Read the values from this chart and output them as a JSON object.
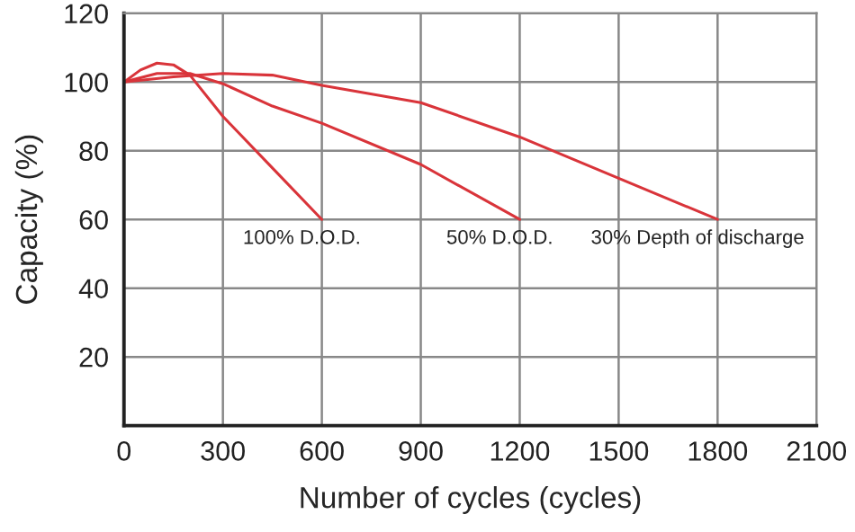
{
  "chart_data": {
    "type": "line",
    "xlabel": "Number of cycles (cycles)",
    "ylabel": "Capacity (%)",
    "xlim": [
      0,
      2100
    ],
    "ylim": [
      0,
      120
    ],
    "xticks": [
      0,
      300,
      600,
      900,
      1200,
      1500,
      1800,
      2100
    ],
    "yticks": [
      {
        "value": 0,
        "label": null
      },
      20,
      40,
      60,
      80,
      100,
      120
    ],
    "grid": true,
    "legend": false,
    "marker": "none",
    "line_style": "solid",
    "series": [
      {
        "color": "#d9343a",
        "x": [
          0,
          50,
          100,
          150,
          200,
          300,
          450,
          600
        ],
        "values": [
          100,
          103.5,
          105.5,
          105,
          102,
          90,
          75,
          60
        ]
      },
      {
        "color": "#d9343a",
        "x": [
          0,
          100,
          200,
          300,
          450,
          600,
          900,
          1200
        ],
        "values": [
          100,
          102.5,
          102.5,
          99.5,
          93,
          88,
          76,
          60
        ]
      },
      {
        "color": "#d9343a",
        "x": [
          0,
          150,
          300,
          450,
          600,
          900,
          1200,
          1500,
          1800
        ],
        "values": [
          100,
          101.5,
          102.5,
          102,
          99,
          94,
          84,
          72,
          60
        ]
      }
    ],
    "annotations": [
      {
        "text": "100% D.O.D.",
        "x": 600,
        "y": 60
      },
      {
        "text": "50% D.O.D.",
        "x": 1200,
        "y": 60
      },
      {
        "text": "30% Depth of discharge",
        "x": 1800,
        "y": 60
      }
    ]
  }
}
